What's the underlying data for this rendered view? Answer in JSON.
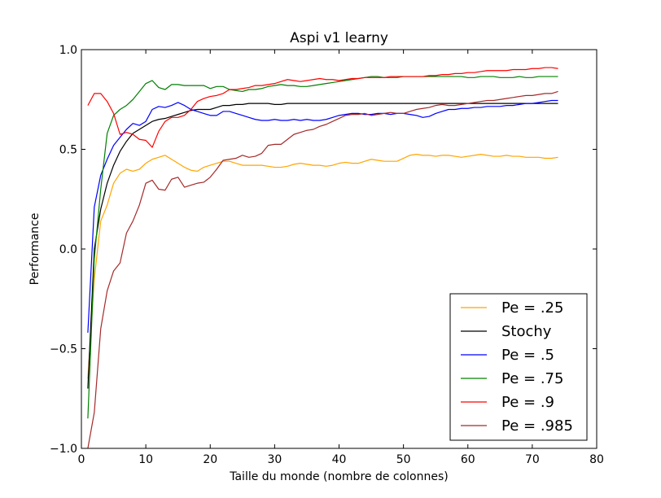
{
  "chart_data": {
    "type": "line",
    "title": "Aspi v1 learny",
    "xlabel": "Taille du monde (nombre de colonnes)",
    "ylabel": "Performance",
    "xlim": [
      0,
      80
    ],
    "ylim": [
      -1.0,
      1.0
    ],
    "xticks": [
      "0",
      "10",
      "20",
      "30",
      "40",
      "50",
      "60",
      "70",
      "80"
    ],
    "yticks": [
      "−1.0",
      "−0.5",
      "0.0",
      "0.5",
      "1.0"
    ],
    "grid": false,
    "legend_position": "lower-right",
    "x": [
      1,
      2,
      3,
      4,
      5,
      6,
      7,
      8,
      9,
      10,
      11,
      12,
      13,
      14,
      15,
      16,
      17,
      18,
      19,
      20,
      21,
      22,
      23,
      24,
      25,
      26,
      27,
      28,
      29,
      30,
      31,
      32,
      33,
      34,
      35,
      36,
      37,
      38,
      39,
      40,
      41,
      42,
      43,
      44,
      45,
      46,
      47,
      48,
      49,
      50,
      51,
      52,
      53,
      54,
      55,
      56,
      57,
      58,
      59,
      60,
      61,
      62,
      63,
      64,
      65,
      66,
      67,
      68,
      69,
      70,
      71,
      72,
      73,
      74
    ],
    "series": [
      {
        "name": "Pe = .25",
        "color": "#ffa500",
        "values": [
          -0.65,
          -0.15,
          0.14,
          0.22,
          0.33,
          0.38,
          0.4,
          0.39,
          0.4,
          0.43,
          0.45,
          0.46,
          0.47,
          0.45,
          0.43,
          0.41,
          0.395,
          0.39,
          0.41,
          0.42,
          0.43,
          0.44,
          0.44,
          0.43,
          0.42,
          0.42,
          0.42,
          0.42,
          0.415,
          0.41,
          0.41,
          0.415,
          0.425,
          0.43,
          0.425,
          0.42,
          0.42,
          0.415,
          0.42,
          0.43,
          0.435,
          0.43,
          0.43,
          0.44,
          0.45,
          0.445,
          0.44,
          0.44,
          0.44,
          0.455,
          0.47,
          0.475,
          0.47,
          0.47,
          0.465,
          0.47,
          0.47,
          0.465,
          0.46,
          0.465,
          0.47,
          0.475,
          0.47,
          0.465,
          0.465,
          0.47,
          0.465,
          0.465,
          0.46,
          0.46,
          0.46,
          0.455,
          0.455,
          0.46
        ]
      },
      {
        "name": "Stochy",
        "color": "#000000",
        "values": [
          -0.7,
          0.0,
          0.2,
          0.33,
          0.42,
          0.49,
          0.54,
          0.58,
          0.6,
          0.62,
          0.64,
          0.65,
          0.655,
          0.665,
          0.675,
          0.685,
          0.695,
          0.7,
          0.7,
          0.7,
          0.71,
          0.72,
          0.72,
          0.725,
          0.725,
          0.73,
          0.73,
          0.73,
          0.73,
          0.725,
          0.725,
          0.73,
          0.73,
          0.73,
          0.73,
          0.73,
          0.73,
          0.73,
          0.73,
          0.73,
          0.73,
          0.73,
          0.73,
          0.73,
          0.73,
          0.73,
          0.73,
          0.73,
          0.73,
          0.73,
          0.73,
          0.73,
          0.73,
          0.73,
          0.73,
          0.73,
          0.73,
          0.73,
          0.73,
          0.73,
          0.73,
          0.73,
          0.73,
          0.73,
          0.73,
          0.73,
          0.73,
          0.73,
          0.73,
          0.73,
          0.73,
          0.73,
          0.73,
          0.73
        ]
      },
      {
        "name": "Pe = .5",
        "color": "#0000ff",
        "values": [
          -0.42,
          0.21,
          0.37,
          0.45,
          0.52,
          0.56,
          0.6,
          0.63,
          0.62,
          0.64,
          0.7,
          0.715,
          0.71,
          0.72,
          0.735,
          0.72,
          0.7,
          0.69,
          0.68,
          0.67,
          0.67,
          0.69,
          0.69,
          0.68,
          0.67,
          0.66,
          0.65,
          0.645,
          0.645,
          0.65,
          0.645,
          0.645,
          0.65,
          0.645,
          0.65,
          0.645,
          0.645,
          0.65,
          0.66,
          0.67,
          0.675,
          0.68,
          0.68,
          0.675,
          0.675,
          0.68,
          0.68,
          0.675,
          0.68,
          0.68,
          0.675,
          0.67,
          0.66,
          0.665,
          0.68,
          0.69,
          0.7,
          0.7,
          0.705,
          0.705,
          0.71,
          0.71,
          0.715,
          0.715,
          0.715,
          0.72,
          0.72,
          0.725,
          0.73,
          0.73,
          0.735,
          0.74,
          0.745,
          0.745
        ]
      },
      {
        "name": "Pe = .75",
        "color": "#008000",
        "values": [
          -0.85,
          -0.05,
          0.3,
          0.58,
          0.67,
          0.7,
          0.72,
          0.75,
          0.79,
          0.83,
          0.845,
          0.81,
          0.8,
          0.825,
          0.825,
          0.82,
          0.82,
          0.82,
          0.82,
          0.805,
          0.815,
          0.815,
          0.8,
          0.795,
          0.79,
          0.8,
          0.8,
          0.805,
          0.815,
          0.82,
          0.825,
          0.82,
          0.82,
          0.815,
          0.815,
          0.82,
          0.825,
          0.83,
          0.835,
          0.84,
          0.845,
          0.85,
          0.855,
          0.86,
          0.865,
          0.865,
          0.86,
          0.86,
          0.86,
          0.865,
          0.865,
          0.865,
          0.865,
          0.865,
          0.865,
          0.865,
          0.865,
          0.865,
          0.865,
          0.86,
          0.86,
          0.865,
          0.865,
          0.865,
          0.86,
          0.86,
          0.86,
          0.865,
          0.86,
          0.86,
          0.865,
          0.865,
          0.865,
          0.865
        ]
      },
      {
        "name": "Pe = .9",
        "color": "#ff0000",
        "values": [
          0.72,
          0.78,
          0.78,
          0.74,
          0.68,
          0.575,
          0.585,
          0.575,
          0.55,
          0.545,
          0.51,
          0.59,
          0.64,
          0.66,
          0.66,
          0.67,
          0.7,
          0.74,
          0.755,
          0.765,
          0.77,
          0.78,
          0.8,
          0.8,
          0.805,
          0.81,
          0.82,
          0.82,
          0.825,
          0.83,
          0.84,
          0.85,
          0.845,
          0.84,
          0.845,
          0.85,
          0.855,
          0.85,
          0.85,
          0.845,
          0.85,
          0.855,
          0.855,
          0.86,
          0.86,
          0.86,
          0.86,
          0.865,
          0.865,
          0.865,
          0.865,
          0.865,
          0.865,
          0.87,
          0.87,
          0.875,
          0.875,
          0.88,
          0.88,
          0.885,
          0.885,
          0.89,
          0.895,
          0.895,
          0.895,
          0.895,
          0.9,
          0.9,
          0.9,
          0.905,
          0.905,
          0.91,
          0.91,
          0.905
        ]
      },
      {
        "name": "Pe = .985",
        "color": "#a52a2a",
        "values": [
          -1.0,
          -0.82,
          -0.4,
          -0.21,
          -0.11,
          -0.07,
          0.08,
          0.14,
          0.22,
          0.33,
          0.345,
          0.3,
          0.295,
          0.35,
          0.36,
          0.31,
          0.32,
          0.33,
          0.335,
          0.36,
          0.4,
          0.445,
          0.45,
          0.455,
          0.47,
          0.46,
          0.465,
          0.48,
          0.52,
          0.525,
          0.525,
          0.55,
          0.575,
          0.585,
          0.595,
          0.6,
          0.615,
          0.625,
          0.64,
          0.655,
          0.67,
          0.675,
          0.675,
          0.68,
          0.67,
          0.675,
          0.68,
          0.685,
          0.68,
          0.68,
          0.69,
          0.7,
          0.705,
          0.71,
          0.72,
          0.725,
          0.72,
          0.72,
          0.725,
          0.73,
          0.735,
          0.74,
          0.745,
          0.745,
          0.75,
          0.755,
          0.76,
          0.765,
          0.77,
          0.77,
          0.775,
          0.78,
          0.78,
          0.79
        ]
      }
    ]
  }
}
